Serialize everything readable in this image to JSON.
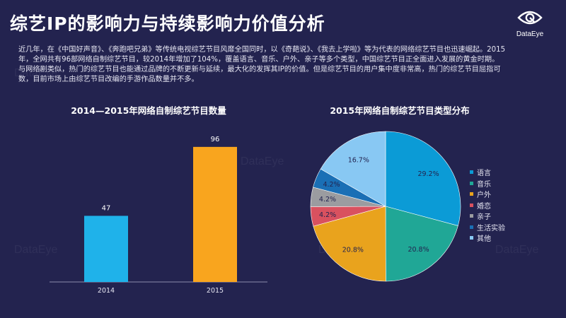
{
  "header": {
    "title": "综艺IP的影响力与持续影响力价值分析",
    "brand": "DataEye"
  },
  "intro": {
    "paragraphs": [
      "近几年，在《中国好声音》、《奔跑吧兄弟》等传统电视综艺节目风靡全国同时，以《奇葩说》、《我去上学啦》等为代表的网络综艺节目也迅速崛起。2015年，全网共有96部网络自制综艺节目，较2014年增加了104%，覆盖语言、音乐、户外、亲子等多个类型，中国综艺节目正全面进入发展的黄金时期。",
      "与网络剧类似，热门的综艺节目也能通过品牌的不断更新与延续，最大化的发挥其IP的价值。但是综艺节目的用户集中度非常高，热门的综艺节目屈指可数，目前市场上由综艺节目改编的手游作品数量并不多。"
    ]
  },
  "watermark_text": "DataEye",
  "chart_data": [
    {
      "type": "bar",
      "title": "2014—2015年网络自制综艺节目数量",
      "categories": [
        "2014",
        "2015"
      ],
      "values": [
        47,
        96
      ],
      "colors": [
        "#1fb2ea",
        "#f9a51e"
      ],
      "ylim": [
        0,
        110
      ],
      "grid": false
    },
    {
      "type": "pie",
      "title": "2015年网络自制综艺节目类型分布",
      "labels": [
        "语言",
        "音乐",
        "户外",
        "婚恋",
        "亲子",
        "生活实验",
        "其他"
      ],
      "values": [
        29.2,
        20.8,
        20.8,
        4.2,
        4.2,
        4.2,
        16.7
      ],
      "value_labels": [
        "29.2%",
        "20.8%",
        "20.8%",
        "4.2%",
        "4.2%",
        "4.2%",
        "16.7%"
      ],
      "colors": [
        "#0b9bd6",
        "#20a796",
        "#e9a31d",
        "#d9515f",
        "#9b9ca0",
        "#1a6fb5",
        "#88c8f3"
      ],
      "legend_position": "right"
    }
  ]
}
